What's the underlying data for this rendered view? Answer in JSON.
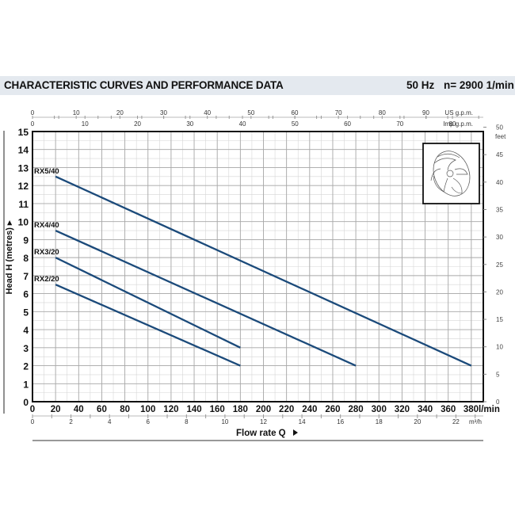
{
  "header": {
    "title": "CHARACTERISTIC CURVES AND PERFORMANCE DATA",
    "frequency": "50 Hz",
    "speed": "n= 2900  1/min"
  },
  "axes": {
    "y_left_label": "Head H (metres)",
    "y_right_unit": "feet",
    "x_primary_label": "Flow rate Q",
    "x_primary_unit": "l/min",
    "x_secondary_unit": "m³/h",
    "top1_unit": "US g.p.m.",
    "top2_unit": "Imp g.p.m."
  },
  "chart_data": {
    "type": "line",
    "title": "CHARACTERISTIC CURVES AND PERFORMANCE DATA",
    "subtitle": "50 Hz  n= 2900 1/min",
    "xlabel": "Flow rate Q (l/min)",
    "ylabel": "Head H (metres)",
    "xlim": [
      0,
      390
    ],
    "ylim": [
      0,
      15
    ],
    "grid": true,
    "legend_position": "inline labels at curve start",
    "x_ticks": [
      0,
      20,
      40,
      60,
      80,
      100,
      120,
      140,
      160,
      180,
      200,
      220,
      240,
      260,
      280,
      300,
      320,
      340,
      360,
      380
    ],
    "y_ticks": [
      0,
      1,
      2,
      3,
      4,
      5,
      6,
      7,
      8,
      9,
      10,
      11,
      12,
      13,
      14,
      15
    ],
    "secondary_axes": {
      "bottom_m3h_ticks": [
        0,
        2,
        4,
        6,
        8,
        10,
        12,
        14,
        16,
        18,
        20,
        22
      ],
      "top_us_gpm_ticks": [
        0,
        10,
        20,
        30,
        40,
        50,
        60,
        70,
        80,
        90
      ],
      "top_imp_gpm_ticks": [
        0,
        10,
        20,
        30,
        40,
        50,
        60,
        70,
        80
      ],
      "right_feet_ticks": [
        0,
        5,
        10,
        15,
        20,
        25,
        30,
        35,
        40,
        45,
        50
      ]
    },
    "series": [
      {
        "name": "RX5/40",
        "x": [
          20,
          380
        ],
        "y": [
          12.5,
          2
        ]
      },
      {
        "name": "RX4/40",
        "x": [
          20,
          280
        ],
        "y": [
          9.5,
          2
        ]
      },
      {
        "name": "RX3/20",
        "x": [
          20,
          180
        ],
        "y": [
          8,
          3
        ]
      },
      {
        "name": "RX2/20",
        "x": [
          20,
          180
        ],
        "y": [
          6.5,
          2
        ]
      }
    ],
    "line_color": "#1b4a7a"
  }
}
